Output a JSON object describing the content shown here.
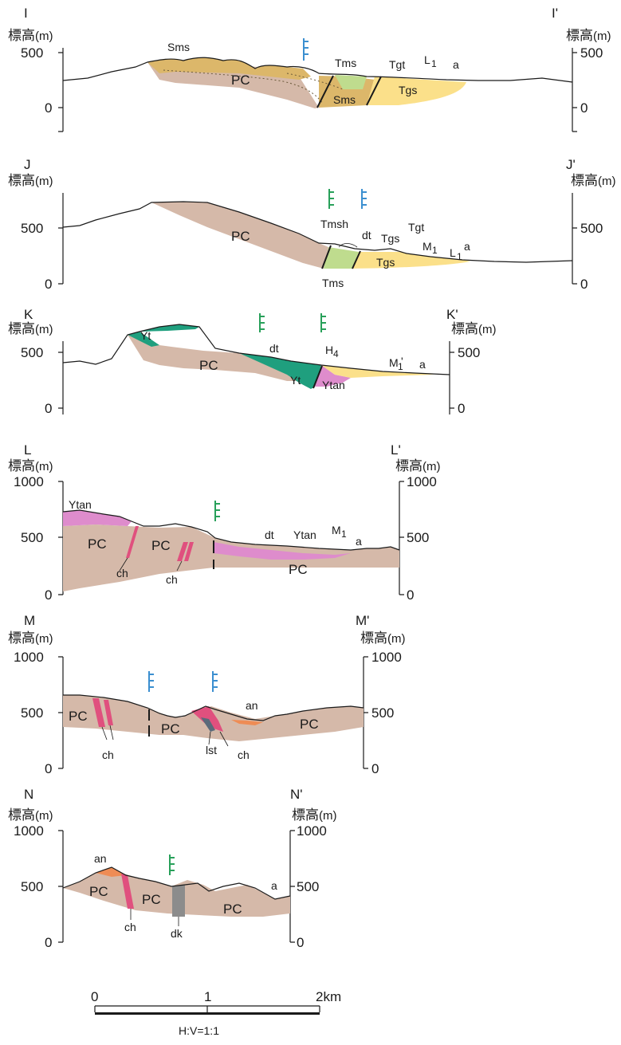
{
  "sections": [
    {
      "id": "I",
      "label_left": "I",
      "label_right": "I'",
      "axis_title": "標高",
      "axis_unit": "(m)",
      "ticks": [
        "500",
        "0"
      ],
      "units": [
        "Sms",
        "PC",
        "Tms",
        "Sms",
        "Tgt",
        "L",
        "1",
        "a",
        "Tgs"
      ]
    },
    {
      "id": "J",
      "label_left": "J",
      "label_right": "J'",
      "axis_title": "標高",
      "axis_unit": "(m)",
      "ticks": [
        "500",
        "0"
      ],
      "units": [
        "PC",
        "Tmsh",
        "dt",
        "Tgs",
        "Tgt",
        "M",
        "1",
        "L",
        "1",
        "a",
        "Tgs",
        "Tms"
      ]
    },
    {
      "id": "K",
      "label_left": "K",
      "label_right": "K'",
      "axis_title": "標高",
      "axis_unit": "(m)",
      "ticks": [
        "500",
        "0"
      ],
      "units": [
        "Yt",
        "PC",
        "dt",
        "H",
        "4",
        "M",
        "1",
        "'",
        "a",
        "Yt",
        "Ytan"
      ]
    },
    {
      "id": "L",
      "label_left": "L",
      "label_right": "L'",
      "axis_title": "標高",
      "axis_unit": "(m)",
      "ticks": [
        "1000",
        "500",
        "0"
      ],
      "units": [
        "Ytan",
        "PC",
        "PC",
        "ch",
        "ch",
        "dt",
        "Ytan",
        "M",
        "1",
        "a",
        "PC"
      ]
    },
    {
      "id": "M",
      "label_left": "M",
      "label_right": "M'",
      "axis_title": "標高",
      "axis_unit": "(m)",
      "ticks": [
        "1000",
        "500",
        "0"
      ],
      "units": [
        "PC",
        "ch",
        "PC",
        "an",
        "PC",
        "lst",
        "ch"
      ]
    },
    {
      "id": "N",
      "label_left": "N",
      "label_right": "N'",
      "axis_title": "標高",
      "axis_unit": "(m)",
      "ticks": [
        "1000",
        "500",
        "0"
      ],
      "units": [
        "an",
        "PC",
        "PC",
        "PC",
        "a",
        "ch",
        "dk"
      ]
    }
  ],
  "scale_bar": {
    "labels": [
      "0",
      "1",
      "2km"
    ],
    "ratio": "H:V=1:1"
  },
  "colors": {
    "PC": "#d5b9a9",
    "Sms": "#dcb76a",
    "Tms": "#bfdc8e",
    "Tgs": "#fbe08a",
    "Yt": "#1f9f7e",
    "Ytan": "#de8ccc",
    "ch": "#e0507e",
    "an": "#ee8c55",
    "dk": "#8c8c8c",
    "symbol_blue": "#3b8fd0",
    "symbol_green": "#28a05a"
  }
}
